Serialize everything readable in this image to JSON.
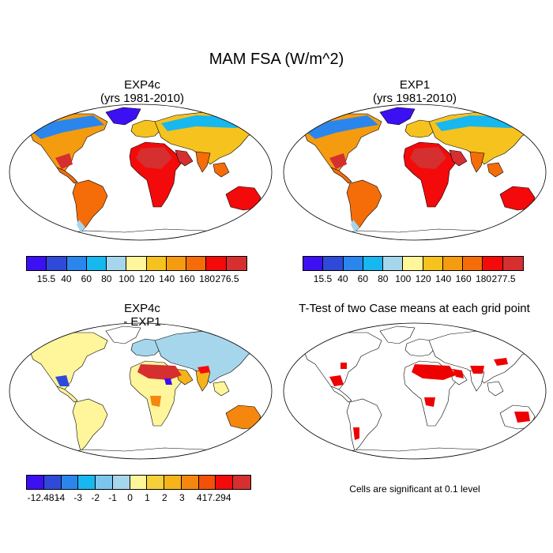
{
  "figure_title": "MAM FSA (W/m^2)",
  "panels": [
    {
      "id": "exp4c",
      "title_line1": "EXP4c",
      "title_line2": "(yrs 1981-2010)",
      "kind": "absolute"
    },
    {
      "id": "exp1",
      "title_line1": "EXP1",
      "title_line2": "(yrs 1981-2010)",
      "kind": "absolute"
    },
    {
      "id": "diff",
      "title_line1": "EXP4c",
      "title_line2": "- EXP1",
      "kind": "difference"
    },
    {
      "id": "ttest",
      "title_line1": "T-Test of two Case means at each grid point",
      "title_line2": "",
      "kind": "significance"
    }
  ],
  "colorbars": {
    "exp4c": {
      "colors": [
        "#3c10f2",
        "#2f4ad9",
        "#2a86ec",
        "#17b7f0",
        "#a6d6ec",
        "#fff59a",
        "#f6c21e",
        "#f59b10",
        "#f46d09",
        "#f40a0a",
        "#d52f2f"
      ],
      "labels": [
        "15.5",
        "40",
        "60",
        "80",
        "100",
        "120",
        "140",
        "160",
        "180",
        "276.5"
      ]
    },
    "exp1": {
      "colors": [
        "#3c10f2",
        "#2f4ad9",
        "#2a86ec",
        "#17b7f0",
        "#a6d6ec",
        "#fff59a",
        "#f6c21e",
        "#f59b10",
        "#f46d09",
        "#f40a0a",
        "#d52f2f"
      ],
      "labels": [
        "15.5",
        "40",
        "60",
        "80",
        "100",
        "120",
        "140",
        "160",
        "180",
        "277.5"
      ]
    },
    "diff": {
      "colors": [
        "#3c10f2",
        "#2f4ad9",
        "#2a86ec",
        "#17b7f0",
        "#7cc5ef",
        "#a6d6ec",
        "#fff59a",
        "#f6d03a",
        "#f6b31a",
        "#f5860e",
        "#f4500a",
        "#f40a0a",
        "#d52f2f"
      ],
      "labels": [
        "-12.481",
        "-4",
        "-3",
        "-2",
        "-1",
        "0",
        "1",
        "2",
        "3",
        "4",
        "17.294"
      ]
    }
  },
  "significance_note": "Cells are significant at 0.1 level",
  "significance_color": "#ee0000"
}
